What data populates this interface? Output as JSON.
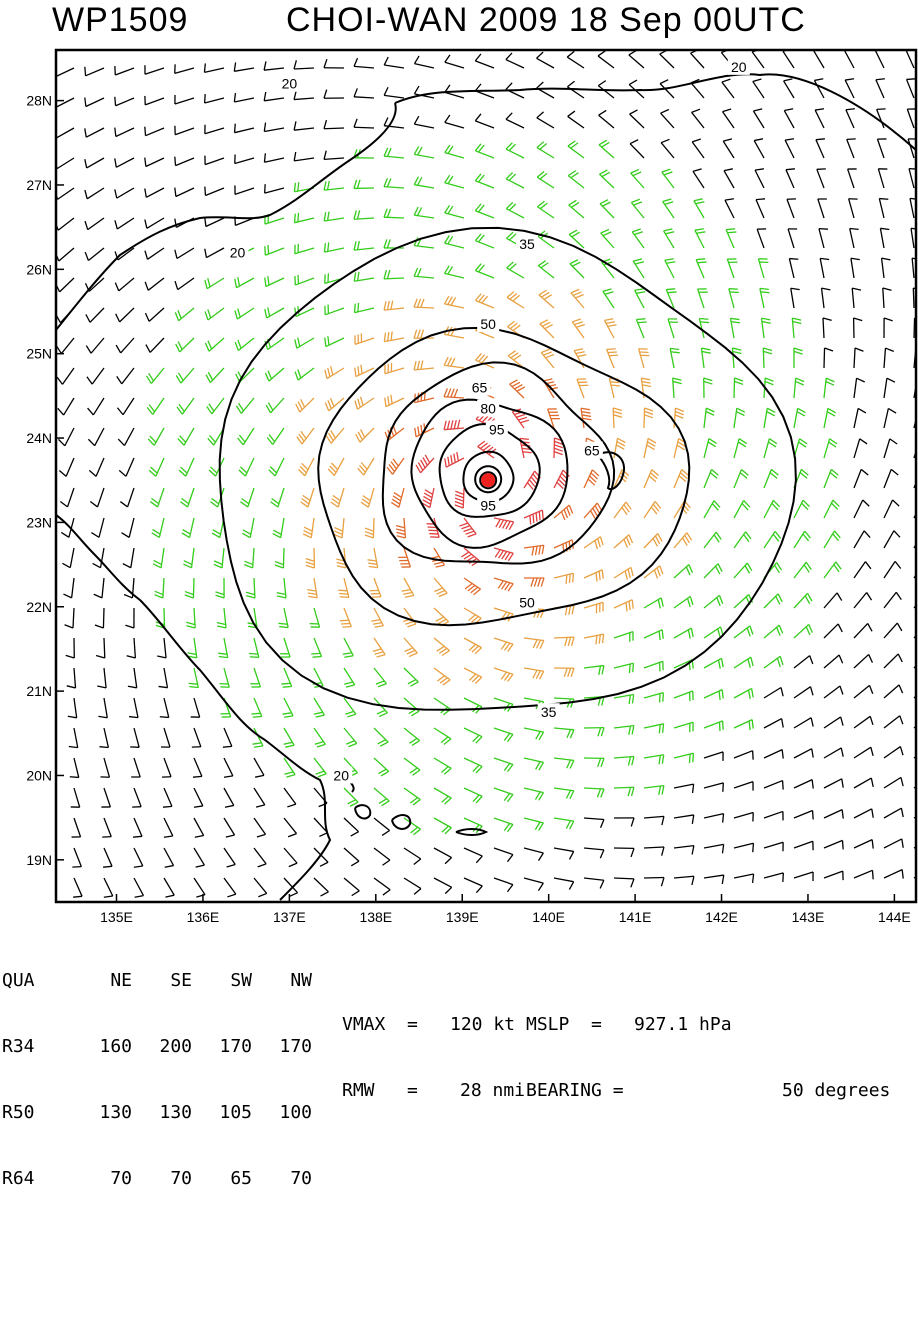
{
  "title": {
    "storm_id": "WP1509",
    "storm_name": "CHOI-WAN 2009 18 Sep 00UTC"
  },
  "map": {
    "lon_range": [
      134.3,
      144.25
    ],
    "lat_range": [
      18.5,
      28.6
    ],
    "lon_ticks": [
      "135E",
      "136E",
      "137E",
      "138E",
      "139E",
      "140E",
      "141E",
      "142E",
      "143E",
      "144E"
    ],
    "lat_ticks": [
      "19N",
      "20N",
      "21N",
      "22N",
      "23N",
      "24N",
      "25N",
      "26N",
      "27N",
      "28N"
    ],
    "center": {
      "lon": 139.3,
      "lat": 23.5
    },
    "contour_labels": [
      {
        "text": "20",
        "lon": 137.0,
        "lat": 28.2
      },
      {
        "text": "20",
        "lon": 142.2,
        "lat": 28.4
      },
      {
        "text": "20",
        "lon": 136.4,
        "lat": 26.2
      },
      {
        "text": "35",
        "lon": 139.75,
        "lat": 26.3
      },
      {
        "text": "50",
        "lon": 139.3,
        "lat": 25.35
      },
      {
        "text": "65",
        "lon": 139.2,
        "lat": 24.6
      },
      {
        "text": "80",
        "lon": 139.3,
        "lat": 24.35
      },
      {
        "text": "95",
        "lon": 139.4,
        "lat": 24.1
      },
      {
        "text": "65",
        "lon": 140.5,
        "lat": 23.85
      },
      {
        "text": "95",
        "lon": 139.3,
        "lat": 23.2
      },
      {
        "text": "50",
        "lon": 139.75,
        "lat": 22.05
      },
      {
        "text": "35",
        "lon": 140.0,
        "lat": 20.75
      },
      {
        "text": "20",
        "lon": 137.6,
        "lat": 20.0
      }
    ],
    "colors": {
      "barb_20": "#000000",
      "barb_35": "#33cc1a",
      "barb_50": "#e8a040",
      "barb_65": "#e06a2a",
      "barb_80": "#e04040",
      "barb_inner": "#909090",
      "center": "#ee2020"
    }
  },
  "wind_radii": {
    "headers": [
      "QUA",
      "NE",
      "SE",
      "SW",
      "NW"
    ],
    "rows": [
      [
        "R34",
        "160",
        "200",
        "170",
        "170"
      ],
      [
        "R50",
        "130",
        "130",
        "105",
        "100"
      ],
      [
        "R64",
        "70",
        "70",
        "65",
        "70"
      ]
    ]
  },
  "stats": {
    "vmax_label": "VMAX  =",
    "vmax_value": "120 kt",
    "mslp_label": "MSLP  =",
    "mslp_value": "927.1 hPa",
    "rmw_label": "RMW   =",
    "rmw_value": "28 nmi",
    "bearing_label": "BEARING =",
    "bearing_value": "50 degrees"
  }
}
